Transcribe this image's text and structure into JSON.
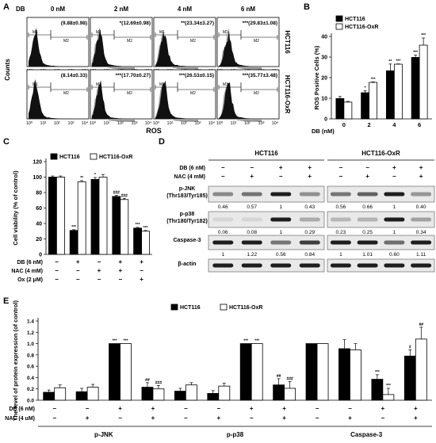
{
  "panel_labels": [
    "A",
    "B",
    "C",
    "D",
    "E"
  ],
  "colors": {
    "filled": "#000000",
    "open": "#ffffff",
    "hist": "#111111",
    "hist_grey": "#9a9a9a",
    "blot_bg": "#e9e9e9"
  },
  "panelA": {
    "drug_label": "DB",
    "columns": [
      "0 nM",
      "2 nM",
      "4 nM",
      "6 nM"
    ],
    "row_labels": [
      "HCT116",
      "HCT116-OxR"
    ],
    "ylabel": "Counts",
    "xlabel": "ROS",
    "gate_labels": [
      "M1",
      "M2"
    ],
    "xticks": [
      "10⁰",
      "10¹",
      "10²",
      "10³",
      "10⁴"
    ],
    "values": [
      [
        "(9.88±0.98)",
        "*(12.69±0.98)",
        "**(23.34±3.27)",
        "***(29.83±1.08)"
      ],
      [
        "(8.14±0.33)",
        "***(17.70±0.27)",
        "***(26.53±0.15)",
        "***(35.77±3.48)"
      ]
    ]
  },
  "chart_data": [
    {
      "panel": "B",
      "type": "bar",
      "ylabel": "ROS Positive Cells (%)",
      "xlabel": "DB (nM)",
      "categories": [
        "0",
        "2",
        "4",
        "6"
      ],
      "ylim": [
        0,
        40
      ],
      "yticks": [
        "0",
        "10",
        "20",
        "30",
        "40"
      ],
      "legend": "top-left",
      "series": [
        {
          "name": "HCT116",
          "values": [
            9.88,
            12.69,
            23.34,
            29.83
          ],
          "errors": [
            0.98,
            0.98,
            3.27,
            1.08
          ],
          "sig": [
            "",
            "*",
            "**",
            "***"
          ]
        },
        {
          "name": "HCT116-OxR",
          "values": [
            8.14,
            17.7,
            26.53,
            35.77
          ],
          "errors": [
            0.33,
            0.27,
            0.15,
            3.48
          ],
          "sig": [
            "",
            "***",
            "***",
            "***"
          ]
        }
      ]
    },
    {
      "panel": "C",
      "type": "bar",
      "ylabel": "Cell viability (% of control)",
      "ylim": [
        0,
        120
      ],
      "yticks": [
        "0",
        "20",
        "40",
        "60",
        "80",
        "100",
        "120"
      ],
      "legend": "top-left",
      "treatment_rows": [
        {
          "label": "DB (6 nM)",
          "marks": [
            "−",
            "+",
            "−",
            "+",
            "+"
          ]
        },
        {
          "label": "NAC (4 mM)",
          "marks": [
            "−",
            "−",
            "+",
            "+",
            "−"
          ]
        },
        {
          "label": "Ox (2 μM)",
          "marks": [
            "−",
            "−",
            "−",
            "−",
            "+"
          ]
        }
      ],
      "series": [
        {
          "name": "HCT116",
          "values": [
            100,
            31,
            97,
            75,
            34
          ],
          "errors": [
            1.5,
            1.0,
            2.5,
            1.5,
            1.0
          ],
          "sig": [
            "",
            "***",
            "*",
            "###",
            "***"
          ]
        },
        {
          "name": "HCT116-OxR",
          "values": [
            100,
            94,
            100,
            71,
            30
          ],
          "errors": [
            1.5,
            1.5,
            3.5,
            1.5,
            1.0
          ],
          "sig": [
            "",
            "**",
            "",
            "###",
            "***"
          ]
        }
      ]
    },
    {
      "panel": "E",
      "type": "bar",
      "ylabel": "The level of protein expression (of control)",
      "ylim": [
        0,
        1.4
      ],
      "yticks": [
        "0.0",
        "0.2",
        "0.4",
        "0.6",
        "0.8",
        "1.0",
        "1.2",
        "1.4"
      ],
      "legend": "top-center",
      "groups": [
        "p-JNK",
        "p-p38",
        "Caspase-3"
      ],
      "treatment_rows": [
        {
          "label": "DB (6 nM)",
          "marks": [
            "−",
            "−",
            "+",
            "+",
            "−",
            "−",
            "+",
            "+",
            "−",
            "−",
            "+",
            "+"
          ]
        },
        {
          "label": "NAC (4 uM)",
          "marks": [
            "−",
            "+",
            "−",
            "+",
            "−",
            "+",
            "−",
            "+",
            "−",
            "+",
            "−",
            "+"
          ]
        }
      ],
      "series": [
        {
          "name": "HCT116",
          "values": [
            0.14,
            0.15,
            1.0,
            0.23,
            0.16,
            0.12,
            1.0,
            0.27,
            1.0,
            0.91,
            0.37,
            0.78
          ],
          "errors": [
            0.04,
            0.06,
            0.0,
            0.08,
            0.05,
            0.05,
            0.0,
            0.11,
            0.0,
            0.16,
            0.08,
            0.11
          ],
          "sig": [
            "",
            "",
            "***",
            "##",
            "",
            "",
            "***",
            "##",
            "",
            "",
            "***",
            "#"
          ]
        },
        {
          "name": "HCT116-OxR",
          "values": [
            0.22,
            0.23,
            1.0,
            0.2,
            0.27,
            0.25,
            1.0,
            0.21,
            1.0,
            0.89,
            0.1,
            1.08
          ],
          "errors": [
            0.05,
            0.05,
            0.0,
            0.06,
            0.04,
            0.05,
            0.0,
            0.12,
            0.0,
            0.11,
            0.11,
            0.21
          ],
          "sig": [
            "",
            "",
            "***",
            "###",
            "",
            "",
            "***",
            "###",
            "",
            "",
            "***",
            "##"
          ]
        }
      ]
    }
  ],
  "panelD": {
    "groups": [
      "HCT116",
      "HCT116-OxR"
    ],
    "treatment_rows": [
      {
        "label": "DB (6 nM)",
        "marks": [
          "−",
          "−",
          "+",
          "+",
          "−",
          "−",
          "+",
          "+"
        ]
      },
      {
        "label": "NAC (4 mM)",
        "marks": [
          "−",
          "+",
          "−",
          "+",
          "−",
          "+",
          "−",
          "+"
        ]
      }
    ],
    "blots": [
      {
        "label": "p-JNK\n(Thr183/Tyr185)",
        "values": [
          "0.46",
          "0.57",
          "1",
          "0.43",
          "0.56",
          "0.66",
          "1",
          "0.40"
        ],
        "intensity": [
          0.46,
          0.57,
          1,
          0.43,
          0.56,
          0.66,
          1,
          0.4
        ]
      },
      {
        "label": "p-p38\n(Thr180/Tyr182)",
        "values": [
          "0.06",
          "0.08",
          "1",
          "0.29",
          "0.23",
          "0.25",
          "1",
          "0.34"
        ],
        "intensity": [
          0.06,
          0.08,
          1,
          0.29,
          0.23,
          0.25,
          1,
          0.34
        ]
      },
      {
        "label": "Caspase-3",
        "values": [
          "1",
          "1.22",
          "0.56",
          "0.84",
          "1",
          "1.01",
          "0.60",
          "1.11"
        ],
        "intensity": [
          1,
          1.22,
          0.56,
          0.84,
          1,
          1.01,
          0.6,
          1.11
        ]
      },
      {
        "label": "β-actin",
        "values": [],
        "intensity": [
          1,
          1,
          1,
          1,
          1,
          1,
          1,
          1
        ]
      }
    ]
  }
}
